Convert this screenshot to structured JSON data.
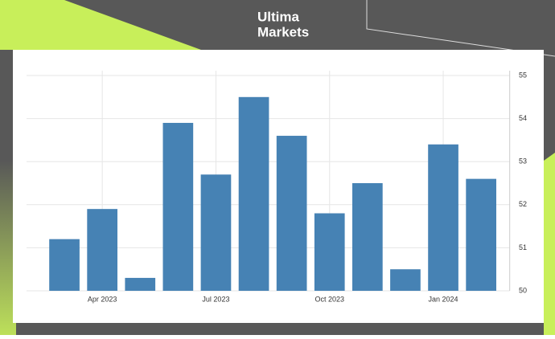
{
  "header": {
    "brand_top": "Ultima",
    "brand_bottom": "Markets"
  },
  "chart_data": {
    "type": "bar",
    "categories": [
      null,
      "Apr 2023",
      null,
      null,
      "Jul 2023",
      null,
      null,
      "Oct 2023",
      null,
      null,
      "Jan 2024",
      null
    ],
    "values": [
      51.2,
      51.9,
      50.3,
      53.9,
      52.7,
      54.5,
      53.6,
      51.8,
      52.5,
      50.5,
      53.4,
      52.6
    ],
    "color": "#4682b4",
    "ylim": [
      50,
      55
    ],
    "yticks": [
      50,
      51,
      52,
      53,
      54,
      55
    ],
    "grid": true,
    "y_axis_side": "right"
  }
}
